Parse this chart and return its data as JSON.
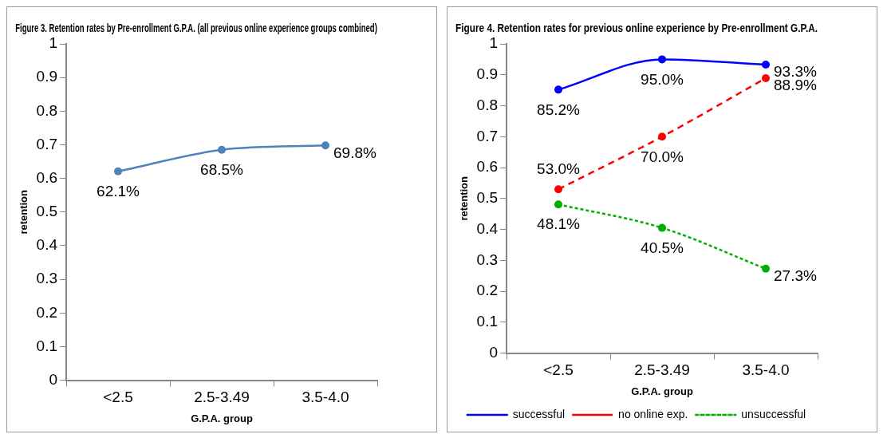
{
  "chart_data": [
    {
      "type": "line",
      "title": "Figure 3. Retention rates by Pre-enrollment G.P.A. (all previous online experience groups combined)",
      "xlabel": "G.P.A. group",
      "ylabel": "retention",
      "categories": [
        "<2.5",
        "2.5-3.49",
        "3.5-4.0"
      ],
      "ylim": [
        0,
        1
      ],
      "yticks": [
        0,
        0.1,
        0.2,
        0.3,
        0.4,
        0.5,
        0.6,
        0.7,
        0.8,
        0.9,
        1
      ],
      "marker": "circle",
      "line_style": "solid",
      "series": [
        {
          "color": "#4f81bd",
          "values": [
            0.621,
            0.685,
            0.698
          ],
          "value_labels": [
            "62.1%",
            "68.5%",
            "69.8%"
          ]
        }
      ]
    },
    {
      "type": "line",
      "title": "Figure 4. Retention rates for previous online experience by Pre-enrollment G.P.A.",
      "xlabel": "G.P.A. group",
      "ylabel": "retention",
      "categories": [
        "<2.5",
        "2.5-3.49",
        "3.5-4.0"
      ],
      "ylim": [
        0,
        1
      ],
      "yticks": [
        0,
        0.1,
        0.2,
        0.3,
        0.4,
        0.5,
        0.6,
        0.7,
        0.8,
        0.9,
        1
      ],
      "marker": "circle",
      "legend": "bottom",
      "series": [
        {
          "name": "successful",
          "color": "#0000ff",
          "line_style": "solid",
          "values": [
            0.852,
            0.95,
            0.933
          ],
          "value_labels": [
            "85.2%",
            "95.0%",
            "93.3%"
          ]
        },
        {
          "name": "no online exp.",
          "color": "#ff0000",
          "line_style": "dashed",
          "values": [
            0.53,
            0.7,
            0.889
          ],
          "value_labels": [
            "53.0%",
            "70.0%",
            "88.9%"
          ]
        },
        {
          "name": "unsuccessful",
          "color": "#00b000",
          "line_style": "dotted",
          "values": [
            0.481,
            0.405,
            0.273
          ],
          "value_labels": [
            "48.1%",
            "40.5%",
            "27.3%"
          ]
        }
      ]
    }
  ]
}
